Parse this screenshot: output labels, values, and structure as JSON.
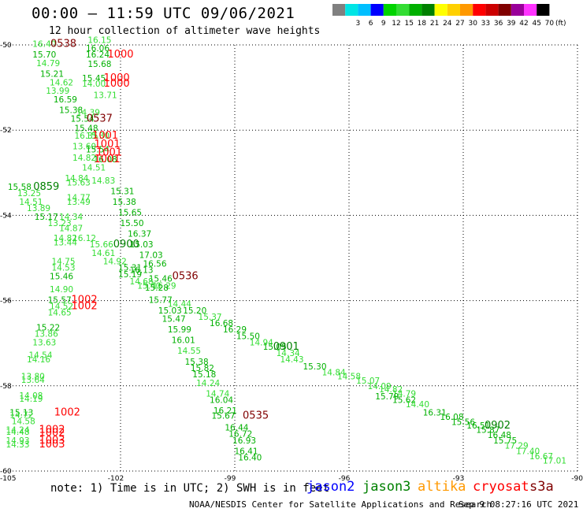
{
  "title": "00:00 – 11:59 UTC 09/06/2021",
  "subtitle": "12 hour collection of altimeter wave heights",
  "legend": {
    "unit": "(ft)",
    "items": [
      {
        "label": "",
        "color": "#808080"
      },
      {
        "label": "3",
        "color": "#00e5e5"
      },
      {
        "label": "6",
        "color": "#00bfff"
      },
      {
        "label": "9",
        "color": "#0000ff"
      },
      {
        "label": "12",
        "color": "#00d400"
      },
      {
        "label": "15",
        "color": "#33dd33"
      },
      {
        "label": "18",
        "color": "#00b000"
      },
      {
        "label": "21",
        "color": "#008000"
      },
      {
        "label": "24",
        "color": "#ffff00"
      },
      {
        "label": "27",
        "color": "#ffd000"
      },
      {
        "label": "30",
        "color": "#ff9900"
      },
      {
        "label": "33",
        "color": "#ff0000"
      },
      {
        "label": "36",
        "color": "#cc0000"
      },
      {
        "label": "39",
        "color": "#800000"
      },
      {
        "label": "42",
        "color": "#990099"
      },
      {
        "label": "45",
        "color": "#ff33ff"
      },
      {
        "label": "70",
        "color": "#000000"
      }
    ]
  },
  "note": "note: 1) Time is in UTC; 2) SWH is in feet",
  "satellites": [
    {
      "name": "jason2",
      "color": "#0000ff"
    },
    {
      "name": "jason3",
      "color": "#008000"
    },
    {
      "name": "altika",
      "color": "#ff9900"
    },
    {
      "name": "cryosat",
      "color": "#ff0000"
    },
    {
      "name": "s3a",
      "color": "#800000"
    }
  ],
  "footer": "NOAA/NESDIS Center for Satellite Applications and Research",
  "footer_time": "Sep  9 08:27:16 UTC 2021",
  "chart_data": {
    "type": "scatter",
    "xlim": [
      -105,
      -90
    ],
    "ylim": [
      -60,
      -50
    ],
    "x_ticks": [
      -105,
      -102,
      -99,
      -96,
      -93,
      -90
    ],
    "x_tick_labels": [
      "-105",
      "-102",
      "-99",
      "-96",
      "-93",
      "-90"
    ],
    "y_ticks": [
      -50,
      -52,
      -54,
      -56,
      -58,
      -60
    ],
    "y_tick_labels": [
      "-50",
      "-52",
      "-54",
      "-56",
      "-58",
      "-60"
    ],
    "grid": true,
    "wave_heights": [
      {
        "x": -104.0,
        "y": -50.05,
        "v": "16.40",
        "c": "#33dd33"
      },
      {
        "x": -102.55,
        "y": -49.95,
        "v": "16.15",
        "c": "#33dd33"
      },
      {
        "x": -102.6,
        "y": -50.15,
        "v": "16.06",
        "c": "#00b000"
      },
      {
        "x": -104.0,
        "y": -50.3,
        "v": "15.70",
        "c": "#00b000"
      },
      {
        "x": -102.6,
        "y": -50.3,
        "v": "16.24",
        "c": "#00b000"
      },
      {
        "x": -103.9,
        "y": -50.5,
        "v": "14.79",
        "c": "#33dd33"
      },
      {
        "x": -102.55,
        "y": -50.52,
        "v": "15.68",
        "c": "#00b000"
      },
      {
        "x": -103.8,
        "y": -50.75,
        "v": "15.21",
        "c": "#00b000"
      },
      {
        "x": -102.7,
        "y": -50.85,
        "v": "15.45",
        "c": "#00b000"
      },
      {
        "x": -103.55,
        "y": -50.95,
        "v": "14.62",
        "c": "#33dd33"
      },
      {
        "x": -102.7,
        "y": -50.98,
        "v": "14.00",
        "c": "#33dd33"
      },
      {
        "x": -103.65,
        "y": -51.15,
        "v": "13.99",
        "c": "#33dd33"
      },
      {
        "x": -102.4,
        "y": -51.25,
        "v": "13.71",
        "c": "#33dd33"
      },
      {
        "x": -103.45,
        "y": -51.35,
        "v": "16.59",
        "c": "#00b000"
      },
      {
        "x": -103.3,
        "y": -51.6,
        "v": "15.38",
        "c": "#00b000"
      },
      {
        "x": -102.85,
        "y": -51.65,
        "v": "14.39",
        "c": "#33dd33"
      },
      {
        "x": -103.0,
        "y": -51.8,
        "v": "15.54",
        "c": "#00b000"
      },
      {
        "x": -102.9,
        "y": -52.02,
        "v": "15.48",
        "c": "#00b000"
      },
      {
        "x": -102.9,
        "y": -52.2,
        "v": "16.35",
        "c": "#33dd33"
      },
      {
        "x": -102.6,
        "y": -52.2,
        "v": "15.30",
        "c": "#33dd33"
      },
      {
        "x": -102.95,
        "y": -52.45,
        "v": "13.60",
        "c": "#33dd33"
      },
      {
        "x": -102.6,
        "y": -52.52,
        "v": "15.54",
        "c": "#00b000"
      },
      {
        "x": -102.95,
        "y": -52.72,
        "v": "14.82",
        "c": "#33dd33"
      },
      {
        "x": -102.4,
        "y": -52.75,
        "v": "16.08",
        "c": "#00b000"
      },
      {
        "x": -102.7,
        "y": -52.95,
        "v": "14.51",
        "c": "#33dd33"
      },
      {
        "x": -103.15,
        "y": -53.2,
        "v": "14.84",
        "c": "#33dd33"
      },
      {
        "x": -102.45,
        "y": -53.25,
        "v": "14.83",
        "c": "#33dd33"
      },
      {
        "x": -103.1,
        "y": -53.3,
        "v": "15.63",
        "c": "#33dd33"
      },
      {
        "x": -104.65,
        "y": -53.4,
        "v": "15.58",
        "c": "#00b000"
      },
      {
        "x": -101.95,
        "y": -53.5,
        "v": "15.31",
        "c": "#00b000"
      },
      {
        "x": -104.4,
        "y": -53.55,
        "v": "13.25",
        "c": "#33dd33"
      },
      {
        "x": -103.1,
        "y": -53.65,
        "v": "14.77",
        "c": "#33dd33"
      },
      {
        "x": -103.1,
        "y": -53.75,
        "v": "13.49",
        "c": "#33dd33"
      },
      {
        "x": -104.35,
        "y": -53.75,
        "v": "14.51",
        "c": "#33dd33"
      },
      {
        "x": -101.9,
        "y": -53.75,
        "v": "15.38",
        "c": "#00b000"
      },
      {
        "x": -104.15,
        "y": -53.9,
        "v": "13.89",
        "c": "#33dd33"
      },
      {
        "x": -101.75,
        "y": -54.0,
        "v": "15.65",
        "c": "#00b000"
      },
      {
        "x": -103.95,
        "y": -54.1,
        "v": "15.17",
        "c": "#00b000"
      },
      {
        "x": -103.3,
        "y": -54.1,
        "v": "14.34",
        "c": "#33dd33"
      },
      {
        "x": -103.6,
        "y": -54.25,
        "v": "13.23",
        "c": "#33dd33"
      },
      {
        "x": -101.7,
        "y": -54.25,
        "v": "15.50",
        "c": "#00b000"
      },
      {
        "x": -103.3,
        "y": -54.37,
        "v": "14.87",
        "c": "#33dd33"
      },
      {
        "x": -101.5,
        "y": -54.5,
        "v": "16.37",
        "c": "#00b000"
      },
      {
        "x": -103.45,
        "y": -54.6,
        "v": "14.82",
        "c": "#33dd33"
      },
      {
        "x": -102.95,
        "y": -54.6,
        "v": "16.12",
        "c": "#33dd33"
      },
      {
        "x": -103.45,
        "y": -54.7,
        "v": "13.44",
        "c": "#33dd33"
      },
      {
        "x": -102.5,
        "y": -54.75,
        "v": "15.66",
        "c": "#33dd33"
      },
      {
        "x": -101.45,
        "y": -54.75,
        "v": "15.03",
        "c": "#00b000"
      },
      {
        "x": -102.45,
        "y": -54.95,
        "v": "14.61",
        "c": "#33dd33"
      },
      {
        "x": -101.2,
        "y": -55.0,
        "v": "17.03",
        "c": "#00b000"
      },
      {
        "x": -103.5,
        "y": -55.15,
        "v": "14.75",
        "c": "#33dd33"
      },
      {
        "x": -102.15,
        "y": -55.15,
        "v": "14.92",
        "c": "#33dd33"
      },
      {
        "x": -101.1,
        "y": -55.2,
        "v": "16.56",
        "c": "#00b000"
      },
      {
        "x": -103.5,
        "y": -55.3,
        "v": "14.53",
        "c": "#33dd33"
      },
      {
        "x": -101.75,
        "y": -55.3,
        "v": "15.31",
        "c": "#00b000"
      },
      {
        "x": -101.45,
        "y": -55.35,
        "v": "16.13",
        "c": "#00b000"
      },
      {
        "x": -103.55,
        "y": -55.5,
        "v": "15.46",
        "c": "#00b000"
      },
      {
        "x": -101.75,
        "y": -55.45,
        "v": "15.19",
        "c": "#00b000"
      },
      {
        "x": -100.95,
        "y": -55.55,
        "v": "15.46",
        "c": "#00b000"
      },
      {
        "x": -101.45,
        "y": -55.62,
        "v": "14.68",
        "c": "#33dd33"
      },
      {
        "x": -101.25,
        "y": -55.72,
        "v": "15.40",
        "c": "#33dd33"
      },
      {
        "x": -100.85,
        "y": -55.72,
        "v": "16.29",
        "c": "#33dd33"
      },
      {
        "x": -101.05,
        "y": -55.77,
        "v": "15.28",
        "c": "#00b000"
      },
      {
        "x": -103.55,
        "y": -55.8,
        "v": "14.90",
        "c": "#33dd33"
      },
      {
        "x": -103.6,
        "y": -56.05,
        "v": "15.57",
        "c": "#00b000"
      },
      {
        "x": -100.95,
        "y": -56.05,
        "v": "15.77",
        "c": "#00b000"
      },
      {
        "x": -100.45,
        "y": -56.15,
        "v": "14.44",
        "c": "#33dd33"
      },
      {
        "x": -103.55,
        "y": -56.2,
        "v": "14.52",
        "c": "#33dd33"
      },
      {
        "x": -100.7,
        "y": -56.3,
        "v": "15.03",
        "c": "#00b000"
      },
      {
        "x": -100.05,
        "y": -56.3,
        "v": "15.20",
        "c": "#00b000"
      },
      {
        "x": -103.6,
        "y": -56.35,
        "v": "14.65",
        "c": "#33dd33"
      },
      {
        "x": -99.65,
        "y": -56.45,
        "v": "15.37",
        "c": "#33dd33"
      },
      {
        "x": -100.6,
        "y": -56.5,
        "v": "15.47",
        "c": "#00b000"
      },
      {
        "x": -99.35,
        "y": -56.6,
        "v": "16.68",
        "c": "#00b000"
      },
      {
        "x": -103.9,
        "y": -56.7,
        "v": "15.22",
        "c": "#00b000"
      },
      {
        "x": -100.45,
        "y": -56.75,
        "v": "15.99",
        "c": "#00b000"
      },
      {
        "x": -99.0,
        "y": -56.75,
        "v": "16.29",
        "c": "#00b000"
      },
      {
        "x": -103.95,
        "y": -56.85,
        "v": "13.86",
        "c": "#33dd33"
      },
      {
        "x": -98.65,
        "y": -56.9,
        "v": "15.50",
        "c": "#00b000"
      },
      {
        "x": -100.35,
        "y": -57.0,
        "v": "16.01",
        "c": "#00b000"
      },
      {
        "x": -98.3,
        "y": -57.05,
        "v": "14.94",
        "c": "#33dd33"
      },
      {
        "x": -104.0,
        "y": -57.05,
        "v": "13.63",
        "c": "#33dd33"
      },
      {
        "x": -97.95,
        "y": -57.15,
        "v": "15.05",
        "c": "#00b000"
      },
      {
        "x": -100.2,
        "y": -57.25,
        "v": "14.55",
        "c": "#33dd33"
      },
      {
        "x": -97.6,
        "y": -57.3,
        "v": "14.34",
        "c": "#33dd33"
      },
      {
        "x": -104.1,
        "y": -57.35,
        "v": "14.54",
        "c": "#33dd33"
      },
      {
        "x": -100.0,
        "y": -57.5,
        "v": "15.38",
        "c": "#00b000"
      },
      {
        "x": -97.5,
        "y": -57.45,
        "v": "14.43",
        "c": "#33dd33"
      },
      {
        "x": -104.15,
        "y": -57.45,
        "v": "14.16",
        "c": "#33dd33"
      },
      {
        "x": -96.9,
        "y": -57.62,
        "v": "15.30",
        "c": "#00b000"
      },
      {
        "x": -99.85,
        "y": -57.65,
        "v": "15.82",
        "c": "#00b000"
      },
      {
        "x": -96.4,
        "y": -57.75,
        "v": "14.84",
        "c": "#33dd33"
      },
      {
        "x": -99.8,
        "y": -57.8,
        "v": "15.18",
        "c": "#00b000"
      },
      {
        "x": -96.0,
        "y": -57.85,
        "v": "14.58",
        "c": "#33dd33"
      },
      {
        "x": -104.3,
        "y": -57.85,
        "v": "13.80",
        "c": "#33dd33"
      },
      {
        "x": -104.3,
        "y": -57.93,
        "v": "13.64",
        "c": "#33dd33"
      },
      {
        "x": -95.5,
        "y": -57.95,
        "v": "15.07",
        "c": "#33dd33"
      },
      {
        "x": -99.7,
        "y": -58.0,
        "v": "14.24",
        "c": "#33dd33"
      },
      {
        "x": -95.2,
        "y": -58.08,
        "v": "14.09",
        "c": "#33dd33"
      },
      {
        "x": -94.9,
        "y": -58.15,
        "v": "14.82",
        "c": "#33dd33"
      },
      {
        "x": -99.45,
        "y": -58.25,
        "v": "14.74",
        "c": "#33dd33"
      },
      {
        "x": -94.55,
        "y": -58.25,
        "v": "14.79",
        "c": "#33dd33"
      },
      {
        "x": -95.0,
        "y": -58.32,
        "v": "15.79",
        "c": "#00b000"
      },
      {
        "x": -104.35,
        "y": -58.3,
        "v": "14.08",
        "c": "#33dd33"
      },
      {
        "x": -104.35,
        "y": -58.37,
        "v": "14.19",
        "c": "#33dd33"
      },
      {
        "x": -99.35,
        "y": -58.4,
        "v": "16.04",
        "c": "#00b000"
      },
      {
        "x": -94.55,
        "y": -58.4,
        "v": "15.62",
        "c": "#00b000"
      },
      {
        "x": -94.2,
        "y": -58.5,
        "v": "14.40",
        "c": "#33dd33"
      },
      {
        "x": -99.25,
        "y": -58.65,
        "v": "16.21",
        "c": "#00b000"
      },
      {
        "x": -104.6,
        "y": -58.7,
        "v": "15.13",
        "c": "#00b000"
      },
      {
        "x": -104.6,
        "y": -58.75,
        "v": "14.72",
        "c": "#33dd33"
      },
      {
        "x": -99.3,
        "y": -58.77,
        "v": "15.67",
        "c": "#00b000"
      },
      {
        "x": -93.75,
        "y": -58.7,
        "v": "16.31",
        "c": "#00b000"
      },
      {
        "x": -93.3,
        "y": -58.8,
        "v": "16.08",
        "c": "#00b000"
      },
      {
        "x": -104.55,
        "y": -58.9,
        "v": "14.58",
        "c": "#33dd33"
      },
      {
        "x": -93.0,
        "y": -58.92,
        "v": "15.56",
        "c": "#00b000"
      },
      {
        "x": -92.6,
        "y": -59.0,
        "v": "16.51",
        "c": "#00b000"
      },
      {
        "x": -98.95,
        "y": -59.05,
        "v": "16.44",
        "c": "#00b000"
      },
      {
        "x": -104.7,
        "y": -59.1,
        "v": "14.24",
        "c": "#33dd33"
      },
      {
        "x": -104.7,
        "y": -59.15,
        "v": "14.48",
        "c": "#33dd33"
      },
      {
        "x": -92.35,
        "y": -59.1,
        "v": "15.87",
        "c": "#00b000"
      },
      {
        "x": -98.85,
        "y": -59.2,
        "v": "16.72",
        "c": "#00b000"
      },
      {
        "x": -92.05,
        "y": -59.22,
        "v": "16.48",
        "c": "#00b000"
      },
      {
        "x": -104.7,
        "y": -59.35,
        "v": "14.93",
        "c": "#33dd33"
      },
      {
        "x": -91.9,
        "y": -59.35,
        "v": "15.75",
        "c": "#00b000"
      },
      {
        "x": -98.75,
        "y": -59.35,
        "v": "16.93",
        "c": "#00b000"
      },
      {
        "x": -104.7,
        "y": -59.45,
        "v": "14.33",
        "c": "#33dd33"
      },
      {
        "x": -91.6,
        "y": -59.47,
        "v": "17.29",
        "c": "#33dd33"
      },
      {
        "x": -98.7,
        "y": -59.6,
        "v": "16.41",
        "c": "#00b000"
      },
      {
        "x": -91.3,
        "y": -59.6,
        "v": "17.40",
        "c": "#33dd33"
      },
      {
        "x": -90.95,
        "y": -59.72,
        "v": "16.67",
        "c": "#33dd33"
      },
      {
        "x": -98.6,
        "y": -59.75,
        "v": "16.40",
        "c": "#00b000"
      },
      {
        "x": -90.6,
        "y": -59.82,
        "v": "17.01",
        "c": "#33dd33"
      }
    ],
    "time_labels": [
      {
        "x": -103.5,
        "y": -50.05,
        "label": "0538",
        "c": "#800000"
      },
      {
        "x": -102.0,
        "y": -50.3,
        "label": "1000",
        "c": "#ff0000"
      },
      {
        "x": -102.1,
        "y": -50.85,
        "label": "1000",
        "c": "#ff0000"
      },
      {
        "x": -102.1,
        "y": -50.98,
        "label": "1000",
        "c": "#ff0000"
      },
      {
        "x": -102.55,
        "y": -51.8,
        "label": "0537",
        "c": "#800000"
      },
      {
        "x": -102.4,
        "y": -52.2,
        "label": "1001",
        "c": "#ff0000"
      },
      {
        "x": -102.35,
        "y": -52.4,
        "label": "1001",
        "c": "#ff0000"
      },
      {
        "x": -102.3,
        "y": -52.6,
        "label": "1001",
        "c": "#ff0000"
      },
      {
        "x": -102.35,
        "y": -52.75,
        "label": "1001",
        "c": "#ff0000"
      },
      {
        "x": -103.95,
        "y": -53.4,
        "label": "0859",
        "c": "#008000"
      },
      {
        "x": -101.85,
        "y": -54.75,
        "label": "0900",
        "c": "#008000"
      },
      {
        "x": -100.3,
        "y": -55.5,
        "label": "0536",
        "c": "#800000"
      },
      {
        "x": -102.95,
        "y": -56.05,
        "label": "1002",
        "c": "#ff0000"
      },
      {
        "x": -102.95,
        "y": -56.2,
        "label": "1002",
        "c": "#ff0000"
      },
      {
        "x": -97.65,
        "y": -57.15,
        "label": "0901",
        "c": "#008000"
      },
      {
        "x": -103.4,
        "y": -58.7,
        "label": "1002",
        "c": "#ff0000"
      },
      {
        "x": -98.45,
        "y": -58.77,
        "label": "0535",
        "c": "#800000"
      },
      {
        "x": -103.8,
        "y": -59.1,
        "label": "1002",
        "c": "#ff0000"
      },
      {
        "x": -103.8,
        "y": -59.18,
        "label": "1002",
        "c": "#ff0000"
      },
      {
        "x": -103.8,
        "y": -59.35,
        "label": "1003",
        "c": "#ff0000"
      },
      {
        "x": -103.8,
        "y": -59.45,
        "label": "1003",
        "c": "#ff0000"
      },
      {
        "x": -92.1,
        "y": -59.0,
        "label": "0902",
        "c": "#008000"
      }
    ]
  }
}
